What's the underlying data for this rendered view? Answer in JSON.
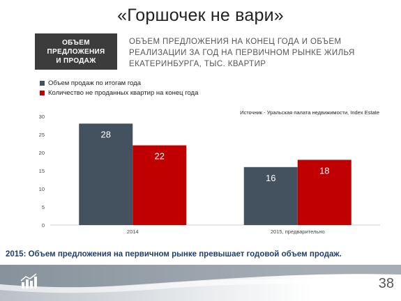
{
  "slide": {
    "title": "«Горшочек не вари»",
    "label_box": "ОБЪЕМ\nПРЕДЛОЖЕНИЯ\nИ ПРОДАЖ",
    "subtitle": "ОБЪЕМ ПРЕДЛОЖЕНИЯ НА КОНЕЦ ГОДА И ОБЪЕМ РЕАЛИЗАЦИИ ЗА ГОД НА ПЕРВИЧНОМ РЫНКЕ ЖИЛЬЯ ЕКАТЕРИНБУРГА, ТЫС. КВАРТИР",
    "source": "Источник - Уральская палата недвижимости, Index Estate",
    "conclusion": "2015: Объем предложения на первичном рынке превышает годовой объем продаж.",
    "page_number": "38",
    "logo_icon": "bar-chart-logo-icon"
  },
  "chart_data": {
    "type": "bar",
    "categories": [
      "2014",
      "2015, предварительно"
    ],
    "series": [
      {
        "name": "Объем продаж по итогам года",
        "values": [
          28,
          16
        ],
        "color": "#44525f"
      },
      {
        "name": "Количество не проданных квартир на конец года",
        "values": [
          22,
          18
        ],
        "color": "#c00000"
      }
    ],
    "ylim": [
      0,
      30
    ],
    "yticks": [
      "0",
      "5",
      "10",
      "15",
      "20",
      "25",
      "30"
    ],
    "data_labels": true,
    "grid": false,
    "legend": "top-left"
  }
}
